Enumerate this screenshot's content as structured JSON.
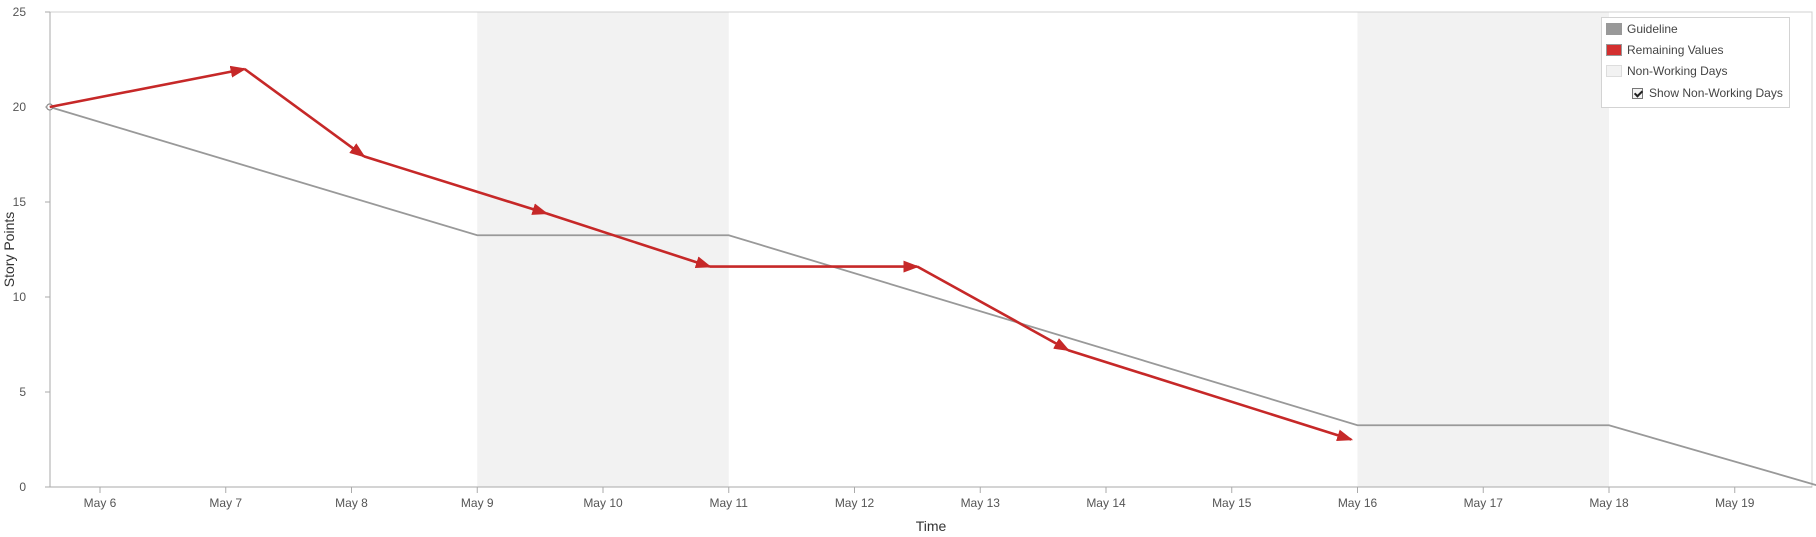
{
  "chart_data": {
    "type": "line",
    "xlabel": "Time",
    "ylabel": "Story Points",
    "ylim": [
      0,
      25
    ],
    "y_ticks": [
      0,
      5,
      10,
      15,
      20,
      25
    ],
    "x_tick_labels": [
      "May 6",
      "May 7",
      "May 8",
      "May 9",
      "May 10",
      "May 11",
      "May 12",
      "May 13",
      "May 14",
      "May 15",
      "May 16",
      "May 17",
      "May 18",
      "May 19"
    ],
    "x_range_days": [
      -0.4,
      13.7
    ],
    "non_working_periods": [
      {
        "start": "May 9",
        "end": "May 11"
      },
      {
        "start": "May 16",
        "end": "May 18"
      }
    ],
    "series": [
      {
        "name": "Guideline",
        "color": "#999999",
        "points": [
          {
            "x": -0.4,
            "y": 20
          },
          {
            "x": 3,
            "y": 13.25
          },
          {
            "x": 5,
            "y": 13.25
          },
          {
            "x": 10,
            "y": 3.25
          },
          {
            "x": 12,
            "y": 3.25
          },
          {
            "x": 13.7,
            "y": 0
          }
        ]
      },
      {
        "name": "Remaining Values",
        "color": "#c62828",
        "points": [
          {
            "x": -0.4,
            "y": 20
          },
          {
            "x": 1.15,
            "y": 22
          },
          {
            "x": 2.1,
            "y": 17.4
          },
          {
            "x": 3.55,
            "y": 14.4
          },
          {
            "x": 4.85,
            "y": 11.6
          },
          {
            "x": 6.5,
            "y": 11.6
          },
          {
            "x": 7.7,
            "y": 7.2
          },
          {
            "x": 9.95,
            "y": 2.5
          }
        ]
      }
    ],
    "legend_position": "top-right"
  },
  "legend": {
    "items": [
      {
        "label": "Guideline",
        "color": "#999999"
      },
      {
        "label": "Remaining Values",
        "color": "#d32f2f"
      },
      {
        "label": "Non-Working Days",
        "color": "#f2f2f2"
      }
    ],
    "toggle_label": "Show Non-Working Days",
    "toggle_checked": true
  }
}
